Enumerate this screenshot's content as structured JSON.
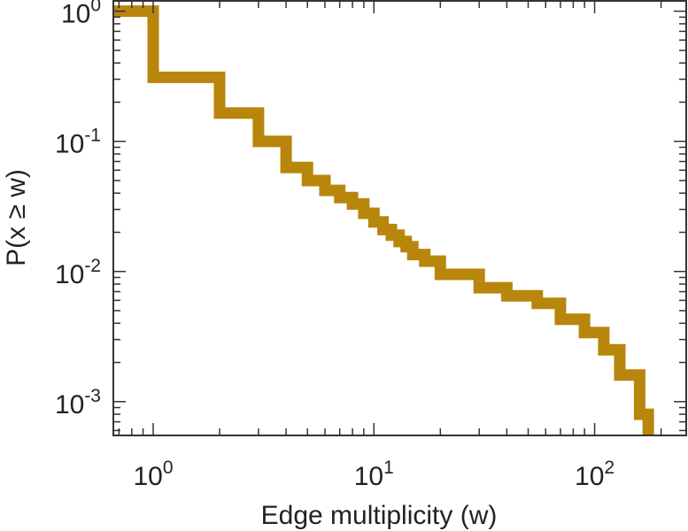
{
  "chart_data": {
    "type": "line",
    "title": "",
    "xlabel": "Edge multiplicity (w)",
    "ylabel": "P(x ≥ w)",
    "x_scale": "log",
    "y_scale": "log",
    "xlim": [
      0.66,
      260
    ],
    "ylim": [
      0.00055,
      1.2
    ],
    "grid": false,
    "legend": "none",
    "step": "post",
    "x_ticks": [
      {
        "base": "10",
        "exp": "0",
        "value": 1
      },
      {
        "base": "10",
        "exp": "1",
        "value": 10
      },
      {
        "base": "10",
        "exp": "2",
        "value": 100
      }
    ],
    "y_ticks": [
      {
        "base": "10",
        "exp": "0",
        "value": 1
      },
      {
        "base": "10",
        "exp": "-1",
        "value": 0.1
      },
      {
        "base": "10",
        "exp": "-2",
        "value": 0.01
      },
      {
        "base": "10",
        "exp": "-3",
        "value": 0.001
      }
    ],
    "series": [
      {
        "color": "#b8860b",
        "x": [
          0.66,
          1,
          2,
          3,
          4,
          5,
          6,
          7,
          8,
          9,
          10,
          11,
          12,
          13,
          14,
          15,
          17,
          20,
          30,
          40,
          55,
          70,
          90,
          110,
          130,
          160,
          175
        ],
        "y": [
          1.0,
          0.31,
          0.165,
          0.1,
          0.063,
          0.05,
          0.042,
          0.037,
          0.033,
          0.028,
          0.024,
          0.021,
          0.019,
          0.017,
          0.0155,
          0.0135,
          0.012,
          0.0095,
          0.0075,
          0.0065,
          0.0057,
          0.0043,
          0.0034,
          0.0025,
          0.0016,
          0.0008,
          0.0005
        ]
      }
    ]
  }
}
